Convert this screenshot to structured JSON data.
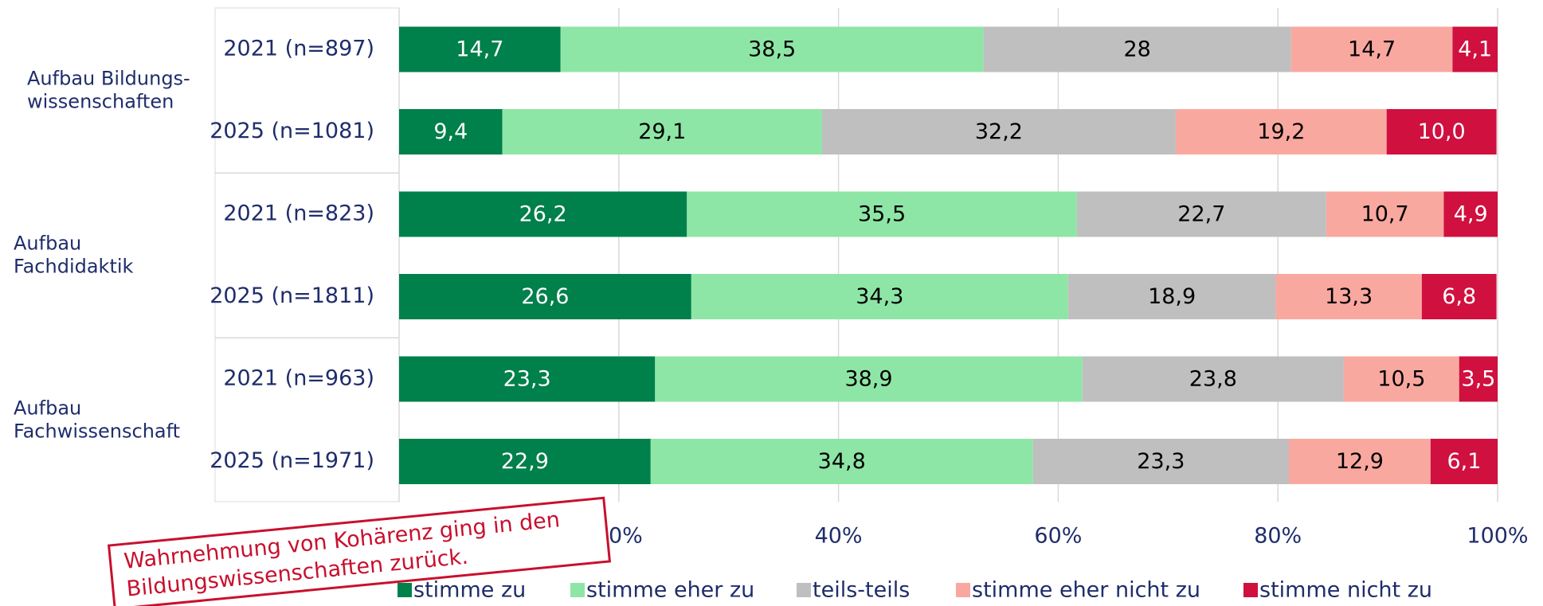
{
  "chart_data": {
    "type": "stacked-bar-horizontal",
    "groups": [
      [
        "Aufbau Bildungs-",
        "wissenschaften"
      ],
      [
        "Aufbau",
        "Fachdidaktik"
      ],
      [
        "Aufbau",
        "Fachwissenschaft"
      ]
    ],
    "categories": [
      "2021 (n=897)",
      "2025 (n=1081)",
      "2021 (n=823)",
      "2025 (n=1811)",
      "2021 (n=963)",
      "2025 (n=1971)"
    ],
    "series": [
      {
        "name": "stimme zu",
        "color": "#00804a",
        "text_color": "#ffffff",
        "values": [
          14.7,
          9.4,
          26.2,
          26.6,
          23.3,
          22.9
        ],
        "value_labels": [
          "14,7",
          "9,4",
          "26,2",
          "26,6",
          "23,3",
          "22,9"
        ]
      },
      {
        "name": "stimme eher zu",
        "color": "#8ee6a6",
        "text_color": "#000000",
        "values": [
          38.5,
          29.1,
          35.5,
          34.3,
          38.9,
          34.8
        ],
        "value_labels": [
          "38,5",
          "29,1",
          "35,5",
          "34,3",
          "38,9",
          "34,8"
        ]
      },
      {
        "name": "teils-teils",
        "color": "#bfbfbf",
        "text_color": "#000000",
        "values": [
          28,
          32.2,
          22.7,
          18.9,
          23.8,
          23.3
        ],
        "value_labels": [
          "28",
          "32,2",
          "22,7",
          "18,9",
          "23,8",
          "23,3"
        ]
      },
      {
        "name": "stimme eher nicht zu",
        "color": "#f9a8a0",
        "text_color": "#000000",
        "values": [
          14.7,
          19.2,
          10.7,
          13.3,
          10.5,
          12.9
        ],
        "value_labels": [
          "14,7",
          "19,2",
          "10,7",
          "13,3",
          "10,5",
          "12,9"
        ]
      },
      {
        "name": "stimme nicht zu",
        "color": "#d0103f",
        "text_color": "#ffffff",
        "values": [
          4.1,
          10.0,
          4.9,
          6.8,
          3.5,
          6.1
        ],
        "value_labels": [
          "4,1",
          "10,0",
          "4,9",
          "6,8",
          "3,5",
          "6,1"
        ]
      }
    ],
    "xlim": [
      0,
      100
    ],
    "xticks": [
      {
        "value": 0,
        "label": "0%"
      },
      {
        "value": 20,
        "label": "20%"
      },
      {
        "value": 40,
        "label": "40%"
      },
      {
        "value": 60,
        "label": "60%"
      },
      {
        "value": 80,
        "label": "80%"
      },
      {
        "value": 100,
        "label": "100%"
      }
    ],
    "grid": true,
    "legend": "bottom",
    "annotation": [
      "Wahrnehmung von Kohärenz ging in den",
      "Bildungswissenschaften zurück."
    ]
  }
}
